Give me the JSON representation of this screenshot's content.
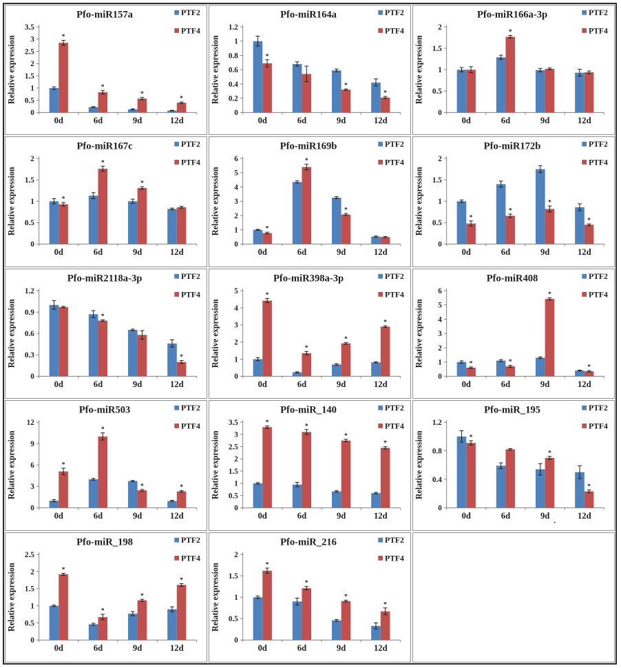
{
  "figure": {
    "ylabel": "Relative expression",
    "series_labels": [
      "PTF2",
      "PTF4"
    ],
    "categories": [
      "0d",
      "6d",
      "9d",
      "12d"
    ],
    "colors": {
      "ptf2": "#4F81BD",
      "ptf4": "#C0504D",
      "axis": "#808080",
      "text": "#1f1f1f",
      "error_bar": "#1a1a1a"
    },
    "significance_marker": "*"
  },
  "chart_data": [
    {
      "type": "bar",
      "title": "Pfo-miR157a",
      "ylim": [
        0,
        3.5
      ],
      "yticks": [
        0,
        0.5,
        1,
        1.5,
        2,
        2.5,
        3,
        3.5
      ],
      "categories": [
        "0d",
        "6d",
        "9d",
        "12d"
      ],
      "series": [
        {
          "name": "PTF2",
          "values": [
            1.0,
            0.22,
            0.13,
            0.08
          ],
          "errors": [
            0.05,
            0.02,
            0.02,
            0.01
          ],
          "sig": [
            false,
            false,
            false,
            false
          ]
        },
        {
          "name": "PTF4",
          "values": [
            2.85,
            0.83,
            0.57,
            0.4
          ],
          "errors": [
            0.1,
            0.07,
            0.05,
            0.03
          ],
          "sig": [
            true,
            true,
            true,
            true
          ]
        }
      ]
    },
    {
      "type": "bar",
      "title": "Pfo-miR164a",
      "ylim": [
        0,
        1.2
      ],
      "yticks": [
        0,
        0.2,
        0.4,
        0.6,
        0.8,
        1,
        1.2
      ],
      "categories": [
        "0d",
        "6d",
        "9d",
        "12d"
      ],
      "series": [
        {
          "name": "PTF2",
          "values": [
            1.0,
            0.68,
            0.59,
            0.42
          ],
          "errors": [
            0.07,
            0.03,
            0.02,
            0.05
          ],
          "sig": [
            false,
            false,
            false,
            false
          ]
        },
        {
          "name": "PTF4",
          "values": [
            0.69,
            0.54,
            0.32,
            0.21
          ],
          "errors": [
            0.05,
            0.11,
            0.01,
            0.015
          ],
          "sig": [
            true,
            false,
            true,
            true
          ]
        }
      ]
    },
    {
      "type": "bar",
      "title": "Pfo-miR166a-3p",
      "ylim": [
        0,
        2
      ],
      "yticks": [
        0,
        0.5,
        1,
        1.5,
        2
      ],
      "categories": [
        "0d",
        "6d",
        "9d",
        "12d"
      ],
      "series": [
        {
          "name": "PTF2",
          "values": [
            1.0,
            1.29,
            0.99,
            0.93
          ],
          "errors": [
            0.05,
            0.05,
            0.04,
            0.08
          ],
          "sig": [
            false,
            false,
            false,
            false
          ]
        },
        {
          "name": "PTF4",
          "values": [
            1.0,
            1.77,
            1.02,
            0.94
          ],
          "errors": [
            0.07,
            0.03,
            0.02,
            0.03
          ],
          "sig": [
            false,
            true,
            false,
            false
          ]
        }
      ]
    },
    {
      "type": "bar",
      "title": "Pfo-miR167c",
      "ylim": [
        0,
        2
      ],
      "yticks": [
        0,
        0.5,
        1,
        1.5,
        2
      ],
      "categories": [
        "0d",
        "6d",
        "9d",
        "12d"
      ],
      "series": [
        {
          "name": "PTF2",
          "values": [
            1.0,
            1.13,
            1.0,
            0.82
          ],
          "errors": [
            0.06,
            0.07,
            0.05,
            0.02
          ],
          "sig": [
            false,
            false,
            false,
            false
          ]
        },
        {
          "name": "PTF4",
          "values": [
            0.93,
            1.76,
            1.31,
            0.86
          ],
          "errors": [
            0.04,
            0.06,
            0.03,
            0.02
          ],
          "sig": [
            true,
            true,
            true,
            false
          ]
        }
      ]
    },
    {
      "type": "bar",
      "title": "Pfo-miR169b",
      "ylim": [
        0,
        6
      ],
      "yticks": [
        0,
        1,
        2,
        3,
        4,
        5,
        6
      ],
      "categories": [
        "0d",
        "6d",
        "9d",
        "12d"
      ],
      "series": [
        {
          "name": "PTF2",
          "values": [
            1.0,
            4.35,
            3.25,
            0.52
          ],
          "errors": [
            0.03,
            0.08,
            0.07,
            0.04
          ],
          "sig": [
            false,
            false,
            false,
            false
          ]
        },
        {
          "name": "PTF4",
          "values": [
            0.77,
            5.4,
            2.07,
            0.49
          ],
          "errors": [
            0.06,
            0.2,
            0.07,
            0.04
          ],
          "sig": [
            true,
            true,
            true,
            false
          ]
        }
      ]
    },
    {
      "type": "bar",
      "title": "Pfo-miR172b",
      "ylim": [
        0,
        2
      ],
      "yticks": [
        0,
        0.5,
        1,
        1.5,
        2
      ],
      "categories": [
        "0d",
        "6d",
        "9d",
        "12d"
      ],
      "series": [
        {
          "name": "PTF2",
          "values": [
            1.0,
            1.4,
            1.75,
            0.86
          ],
          "errors": [
            0.03,
            0.07,
            0.08,
            0.08
          ],
          "sig": [
            false,
            false,
            false,
            false
          ]
        },
        {
          "name": "PTF4",
          "values": [
            0.48,
            0.66,
            0.82,
            0.45
          ],
          "errors": [
            0.06,
            0.04,
            0.07,
            0.02
          ],
          "sig": [
            true,
            true,
            true,
            true
          ]
        }
      ]
    },
    {
      "type": "bar",
      "title": "Pfo-miR2118a-3p",
      "ylim": [
        0,
        1.2
      ],
      "yticks": [
        0,
        0.3,
        0.6,
        0.9,
        1.2
      ],
      "categories": [
        "0d",
        "6d",
        "9d",
        "12d"
      ],
      "series": [
        {
          "name": "PTF2",
          "values": [
            1.0,
            0.87,
            0.65,
            0.46
          ],
          "errors": [
            0.06,
            0.05,
            0.01,
            0.05
          ],
          "sig": [
            false,
            false,
            false,
            false
          ]
        },
        {
          "name": "PTF4",
          "values": [
            0.97,
            0.78,
            0.58,
            0.2
          ],
          "errors": [
            0.01,
            0.01,
            0.06,
            0.02
          ],
          "sig": [
            false,
            true,
            false,
            true
          ]
        }
      ]
    },
    {
      "type": "bar",
      "title": "Pfo-miR398a-3p",
      "ylim": [
        0,
        5
      ],
      "yticks": [
        0,
        1,
        2,
        3,
        4,
        5
      ],
      "categories": [
        "0d",
        "6d",
        "9d",
        "12d"
      ],
      "series": [
        {
          "name": "PTF2",
          "values": [
            1.0,
            0.23,
            0.69,
            0.81
          ],
          "errors": [
            0.09,
            0.03,
            0.05,
            0.03
          ],
          "sig": [
            false,
            false,
            false,
            false
          ]
        },
        {
          "name": "PTF4",
          "values": [
            4.42,
            1.35,
            1.92,
            2.9
          ],
          "errors": [
            0.12,
            0.1,
            0.05,
            0.05
          ],
          "sig": [
            true,
            true,
            true,
            true
          ]
        }
      ]
    },
    {
      "type": "bar",
      "title": "Pfo-miR408",
      "ylim": [
        0,
        6
      ],
      "yticks": [
        0,
        1,
        2,
        3,
        4,
        5,
        6
      ],
      "categories": [
        "0d",
        "6d",
        "9d",
        "12d"
      ],
      "series": [
        {
          "name": "PTF2",
          "values": [
            1.0,
            1.1,
            1.3,
            0.4
          ],
          "errors": [
            0.08,
            0.07,
            0.06,
            0.03
          ],
          "sig": [
            false,
            false,
            false,
            false
          ]
        },
        {
          "name": "PTF4",
          "values": [
            0.6,
            0.7,
            5.42,
            0.35
          ],
          "errors": [
            0.05,
            0.07,
            0.08,
            0.05
          ],
          "sig": [
            true,
            true,
            true,
            true
          ]
        }
      ]
    },
    {
      "type": "bar",
      "title": "Pfo-miR503",
      "ylim": [
        0,
        12
      ],
      "yticks": [
        0,
        3,
        6,
        9,
        12
      ],
      "categories": [
        "0d",
        "6d",
        "9d",
        "12d"
      ],
      "series": [
        {
          "name": "PTF2",
          "values": [
            1.0,
            4.0,
            3.75,
            0.95
          ],
          "errors": [
            0.15,
            0.12,
            0.08,
            0.1
          ],
          "sig": [
            false,
            false,
            false,
            false
          ]
        },
        {
          "name": "PTF4",
          "values": [
            5.1,
            10.0,
            2.45,
            2.3
          ],
          "errors": [
            0.45,
            0.5,
            0.12,
            0.1
          ],
          "sig": [
            true,
            true,
            true,
            true
          ]
        }
      ]
    },
    {
      "type": "bar",
      "title": "Pfo-miR_140",
      "ylim": [
        0,
        3.5
      ],
      "yticks": [
        0,
        0.5,
        1,
        1.5,
        2,
        2.5,
        3,
        3.5
      ],
      "categories": [
        "0d",
        "6d",
        "9d",
        "12d"
      ],
      "series": [
        {
          "name": "PTF2",
          "values": [
            1.0,
            0.95,
            0.67,
            0.6
          ],
          "errors": [
            0.03,
            0.09,
            0.03,
            0.03
          ],
          "sig": [
            false,
            false,
            false,
            false
          ]
        },
        {
          "name": "PTF4",
          "values": [
            3.3,
            3.1,
            2.75,
            2.45
          ],
          "errors": [
            0.05,
            0.1,
            0.05,
            0.05
          ],
          "sig": [
            true,
            true,
            true,
            true
          ]
        }
      ]
    },
    {
      "type": "bar",
      "title": "Pfo-miR_195",
      "ylim": [
        0,
        1.2
      ],
      "yticks": [
        0,
        0.4,
        0.8,
        1.2
      ],
      "categories": [
        "0d",
        "6d",
        "9d",
        "12d"
      ],
      "xtick_note": {
        "index": 2,
        "text": "."
      },
      "series": [
        {
          "name": "PTF2",
          "values": [
            1.0,
            0.59,
            0.54,
            0.5
          ],
          "errors": [
            0.08,
            0.04,
            0.08,
            0.09
          ],
          "sig": [
            false,
            false,
            false,
            false
          ]
        },
        {
          "name": "PTF4",
          "values": [
            0.91,
            0.82,
            0.7,
            0.23
          ],
          "errors": [
            0.03,
            0.01,
            0.02,
            0.02
          ],
          "sig": [
            true,
            false,
            true,
            true
          ]
        }
      ]
    },
    {
      "type": "bar",
      "title": "Pfo-miR_198",
      "ylim": [
        0,
        2.5
      ],
      "yticks": [
        0,
        0.5,
        1,
        1.5,
        2,
        2.5
      ],
      "categories": [
        "0d",
        "6d",
        "9d",
        "12d"
      ],
      "series": [
        {
          "name": "PTF2",
          "values": [
            1.0,
            0.46,
            0.77,
            0.9
          ],
          "errors": [
            0.02,
            0.03,
            0.06,
            0.07
          ],
          "sig": [
            false,
            false,
            false,
            false
          ]
        },
        {
          "name": "PTF4",
          "values": [
            1.92,
            0.67,
            1.16,
            1.61
          ],
          "errors": [
            0.03,
            0.08,
            0.03,
            0.04
          ],
          "sig": [
            true,
            true,
            true,
            true
          ]
        }
      ]
    },
    {
      "type": "bar",
      "title": "Pfo-miR_216",
      "ylim": [
        0,
        2
      ],
      "yticks": [
        0,
        0.5,
        1,
        1.5,
        2
      ],
      "categories": [
        "0d",
        "6d",
        "9d",
        "12d"
      ],
      "series": [
        {
          "name": "PTF2",
          "values": [
            1.0,
            0.9,
            0.46,
            0.33
          ],
          "errors": [
            0.03,
            0.08,
            0.02,
            0.07
          ],
          "sig": [
            false,
            false,
            false,
            false
          ]
        },
        {
          "name": "PTF4",
          "values": [
            1.62,
            1.21,
            0.91,
            0.67
          ],
          "errors": [
            0.06,
            0.04,
            0.02,
            0.08
          ],
          "sig": [
            true,
            true,
            true,
            true
          ]
        }
      ]
    }
  ]
}
